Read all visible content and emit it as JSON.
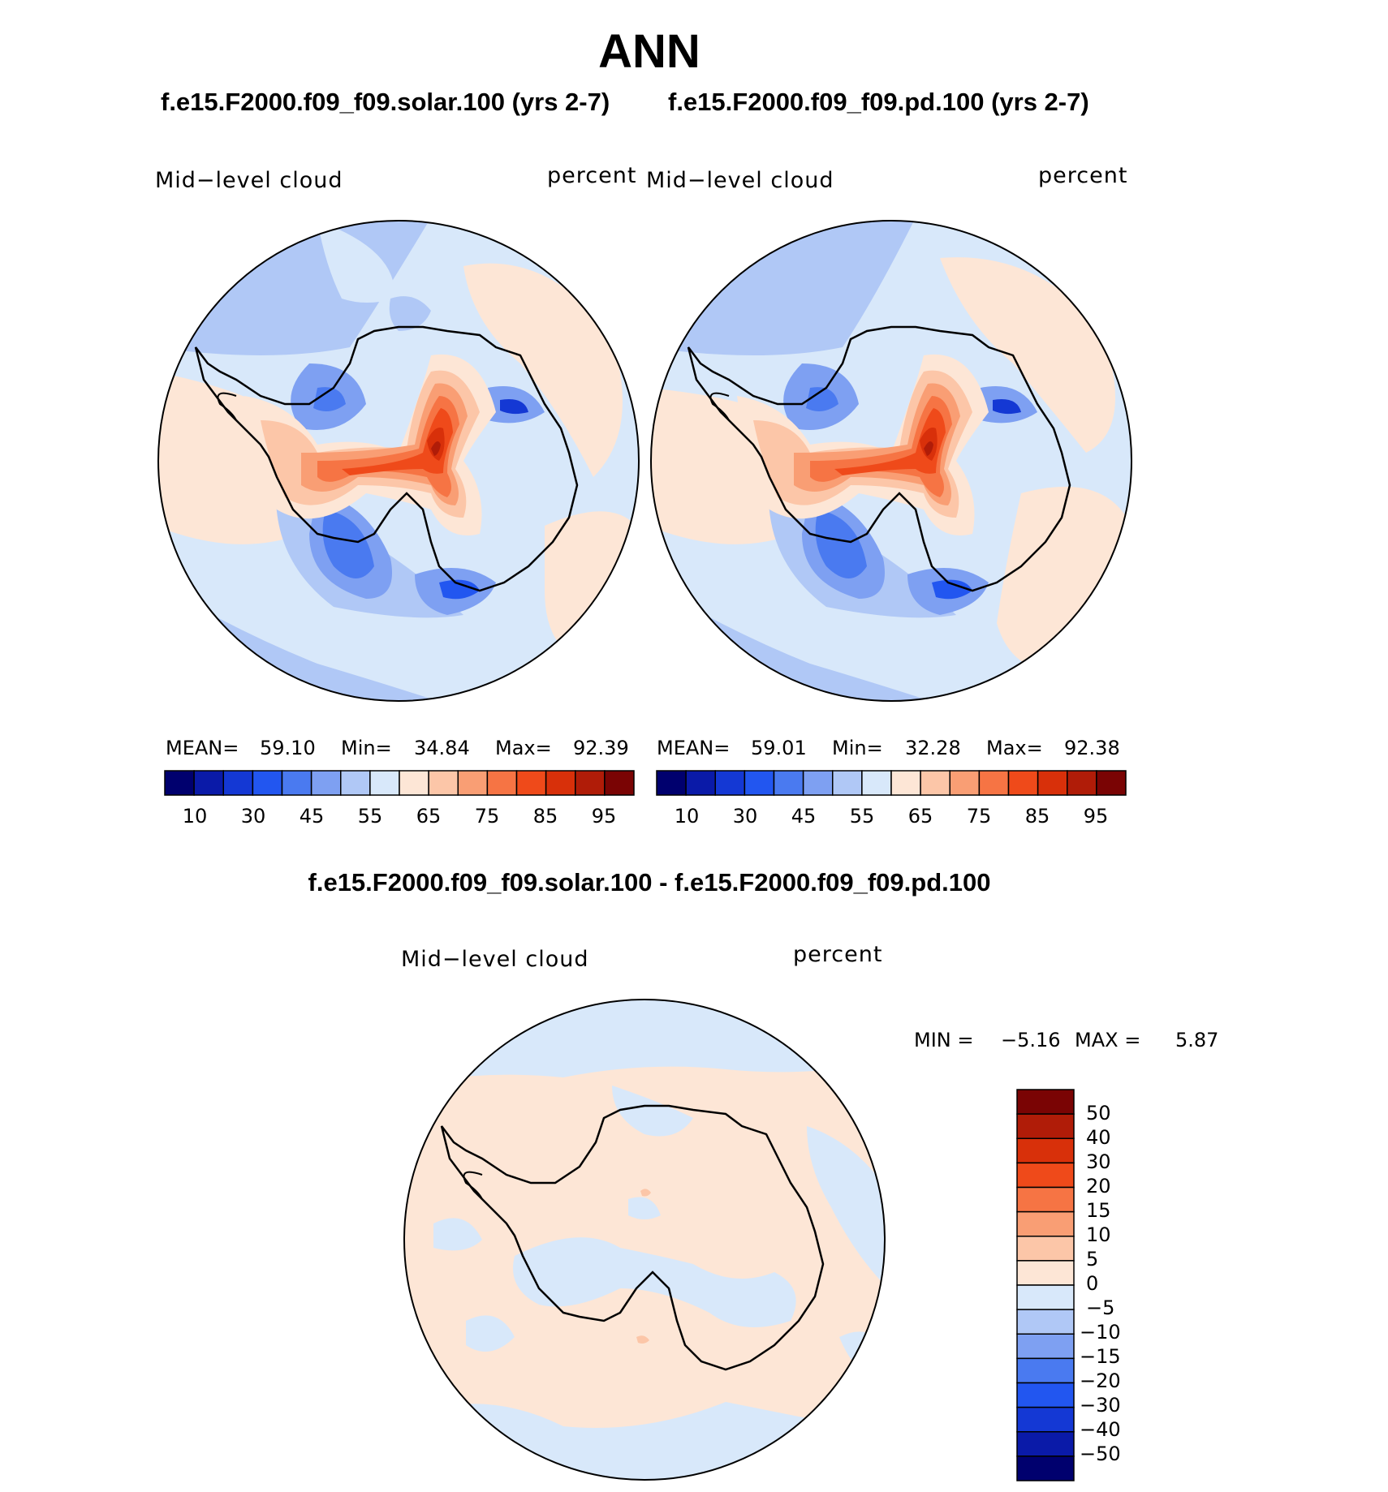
{
  "title": "ANN",
  "chart_data": [
    {
      "type": "heatmap",
      "projection": "south-polar stereographic",
      "case_title": "f.e15.F2000.f09_f09.solar.100 (yrs 2-7)",
      "left_label": "Mid−level cloud",
      "right_label": "percent",
      "stats": {
        "mean_label": "MEAN=",
        "mean": "59.10",
        "min_label": "Min=",
        "min": "34.84",
        "max_label": "Max=",
        "max": "92.39"
      },
      "colorbar_labels": [
        "10",
        "30",
        "45",
        "55",
        "65",
        "75",
        "85",
        "95"
      ],
      "levels": [
        5,
        10,
        15,
        20,
        25,
        30,
        35,
        40,
        45,
        50,
        55,
        60,
        65,
        70,
        75,
        80,
        85,
        90,
        95
      ]
    },
    {
      "type": "heatmap",
      "projection": "south-polar stereographic",
      "case_title": "f.e15.F2000.f09_f09.pd.100 (yrs 2-7)",
      "left_label": "Mid−level cloud",
      "right_label": "percent",
      "stats": {
        "mean_label": "MEAN=",
        "mean": "59.01",
        "min_label": "Min=",
        "min": "32.28",
        "max_label": "Max=",
        "max": "92.38"
      },
      "colorbar_labels": [
        "10",
        "30",
        "45",
        "55",
        "65",
        "75",
        "85",
        "95"
      ]
    },
    {
      "type": "heatmap",
      "projection": "south-polar stereographic",
      "case_title": "f.e15.F2000.f09_f09.solar.100 - f.e15.F2000.f09_f09.pd.100",
      "left_label": "Mid−level cloud",
      "right_label": "percent",
      "stats": {
        "min_label": "MIN =",
        "min": "−5.16",
        "max_label": "MAX =",
        "max": "5.87"
      },
      "colorbar_labels": [
        "50",
        "40",
        "30",
        "20",
        "15",
        "10",
        "5",
        "0",
        "−5",
        "−10",
        "−15",
        "−20",
        "−30",
        "−40",
        "−50"
      ]
    }
  ],
  "colors": {
    "palette": [
      "#00006e",
      "#0a1aa8",
      "#1438d4",
      "#2256f0",
      "#4a7af0",
      "#7ea0f2",
      "#b0c8f6",
      "#d8e8fa",
      "#fde6d6",
      "#fcc6a8",
      "#f99e74",
      "#f67444",
      "#ef4a1a",
      "#d8300a",
      "#b01c08",
      "#7a0404"
    ],
    "coast": "#000000"
  }
}
